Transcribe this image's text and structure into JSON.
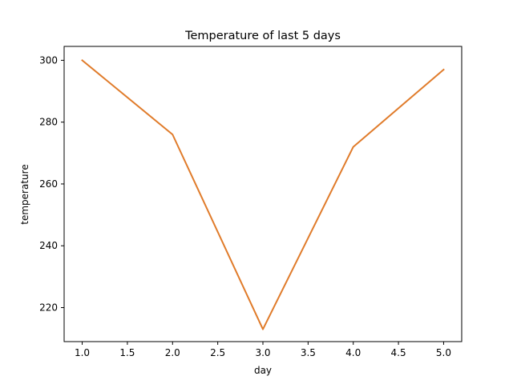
{
  "chart_data": {
    "type": "line",
    "title": "Temperature of last 5 days",
    "xlabel": "day",
    "ylabel": "temperature",
    "x": [
      1.0,
      2.0,
      3.0,
      4.0,
      5.0
    ],
    "series": [
      {
        "values": [
          300,
          276,
          213,
          272,
          297
        ],
        "color": "#e07b2a"
      }
    ],
    "xlim": [
      0.8,
      5.2
    ],
    "ylim": [
      209,
      304.5
    ],
    "xticks": [
      "1.0",
      "1.5",
      "2.0",
      "2.5",
      "3.0",
      "3.5",
      "4.0",
      "4.5",
      "5.0"
    ],
    "yticks": [
      "220",
      "240",
      "260",
      "280",
      "300"
    ],
    "grid": false,
    "legend": "none"
  }
}
